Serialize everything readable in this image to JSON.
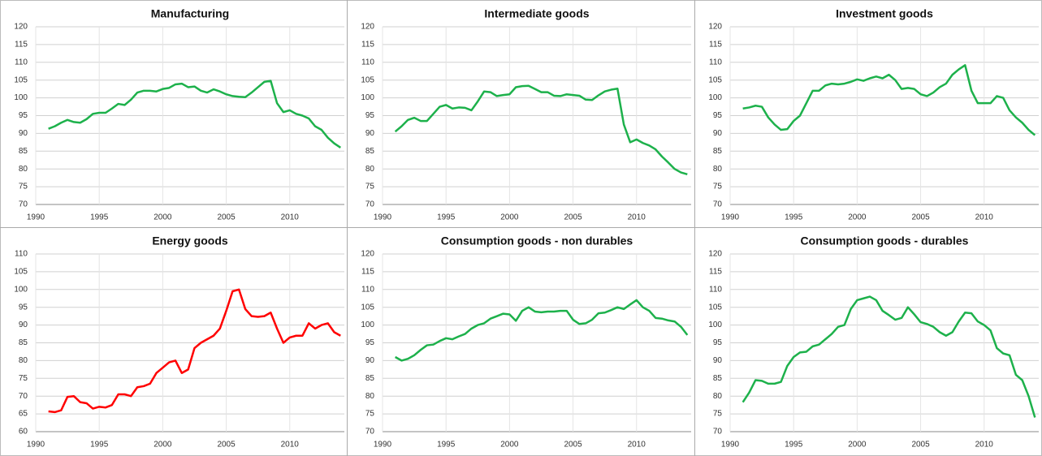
{
  "chart_data": [
    {
      "type": "line",
      "title": "Manufacturing",
      "color": "#1db14b",
      "grid": true,
      "xlim": [
        1990,
        2014.3
      ],
      "xticks": [
        1990,
        1995,
        2000,
        2005,
        2010
      ],
      "ylim": [
        70,
        120
      ],
      "yticks": [
        70,
        75,
        80,
        85,
        90,
        95,
        100,
        105,
        110,
        115,
        120
      ],
      "x": [
        1991,
        1991.5,
        1992,
        1992.5,
        1993,
        1993.5,
        1994,
        1994.5,
        1995,
        1995.5,
        1996,
        1996.5,
        1997,
        1997.5,
        1998,
        1998.5,
        1999,
        1999.5,
        2000,
        2000.5,
        2001,
        2001.5,
        2002,
        2002.5,
        2003,
        2003.5,
        2004,
        2004.5,
        2005,
        2005.5,
        2006,
        2006.5,
        2007,
        2007.5,
        2008,
        2008.5,
        2009,
        2009.5,
        2010,
        2010.5,
        2011,
        2011.5,
        2012,
        2012.5,
        2013,
        2013.5,
        2014
      ],
      "values": [
        91.3,
        92,
        93,
        93.8,
        93.2,
        93,
        94,
        95.5,
        95.8,
        95.8,
        97,
        98.3,
        98,
        99.5,
        101.5,
        102,
        102,
        101.8,
        102.5,
        102.8,
        103.8,
        104,
        103,
        103.2,
        102,
        101.5,
        102.4,
        101.8,
        101,
        100.5,
        100.3,
        100.2,
        101.5,
        103,
        104.5,
        104.8,
        98.5,
        96,
        96.5,
        95.5,
        95,
        94.2,
        92,
        91,
        88.8,
        87.2,
        86
      ]
    },
    {
      "type": "line",
      "title": "Intermediate goods",
      "color": "#1db14b",
      "grid": true,
      "xlim": [
        1990,
        2014.3
      ],
      "xticks": [
        1990,
        1995,
        2000,
        2005,
        2010
      ],
      "ylim": [
        70,
        120
      ],
      "yticks": [
        70,
        75,
        80,
        85,
        90,
        95,
        100,
        105,
        110,
        115,
        120
      ],
      "x": [
        1991,
        1991.5,
        1992,
        1992.5,
        1993,
        1993.5,
        1994,
        1994.5,
        1995,
        1995.5,
        1996,
        1996.5,
        1997,
        1997.5,
        1998,
        1998.5,
        1999,
        1999.5,
        2000,
        2000.5,
        2001,
        2001.5,
        2002,
        2002.5,
        2003,
        2003.5,
        2004,
        2004.5,
        2005,
        2005.5,
        2006,
        2006.5,
        2007,
        2007.5,
        2008,
        2008.5,
        2009,
        2009.5,
        2010,
        2010.5,
        2011,
        2011.5,
        2012,
        2012.5,
        2013,
        2013.5,
        2014
      ],
      "values": [
        90.5,
        92,
        93.8,
        94.4,
        93.5,
        93.5,
        95.5,
        97.5,
        98,
        97,
        97.3,
        97.2,
        96.5,
        99,
        101.8,
        101.6,
        100.5,
        100.8,
        101,
        103,
        103.3,
        103.4,
        102.5,
        101.6,
        101.6,
        100.6,
        100.5,
        101,
        100.8,
        100.6,
        99.5,
        99.4,
        100.7,
        101.8,
        102.3,
        102.6,
        92.5,
        87.5,
        88.3,
        87.3,
        86.6,
        85.5,
        83.5,
        81.8,
        80,
        79,
        78.5
      ]
    },
    {
      "type": "line",
      "title": "Investment goods",
      "color": "#1db14b",
      "grid": true,
      "xlim": [
        1990,
        2014.3
      ],
      "xticks": [
        1990,
        1995,
        2000,
        2005,
        2010
      ],
      "ylim": [
        70,
        120
      ],
      "yticks": [
        70,
        75,
        80,
        85,
        90,
        95,
        100,
        105,
        110,
        115,
        120
      ],
      "x": [
        1991,
        1991.5,
        1992,
        1992.5,
        1993,
        1993.5,
        1994,
        1994.5,
        1995,
        1995.5,
        1996,
        1996.5,
        1997,
        1997.5,
        1998,
        1998.5,
        1999,
        1999.5,
        2000,
        2000.5,
        2001,
        2001.5,
        2002,
        2002.5,
        2003,
        2003.5,
        2004,
        2004.5,
        2005,
        2005.5,
        2006,
        2006.5,
        2007,
        2007.5,
        2008,
        2008.5,
        2009,
        2009.5,
        2010,
        2010.5,
        2011,
        2011.5,
        2012,
        2012.5,
        2013,
        2013.5,
        2014
      ],
      "values": [
        97,
        97.3,
        97.8,
        97.5,
        94.5,
        92.5,
        91,
        91.2,
        93.5,
        95,
        98.5,
        102,
        102,
        103.5,
        104,
        103.8,
        104,
        104.5,
        105.2,
        104.8,
        105.5,
        106,
        105.5,
        106.5,
        105,
        102.5,
        102.8,
        102.5,
        101,
        100.5,
        101.5,
        103,
        104,
        106.5,
        108,
        109.2,
        102,
        98.5,
        98.5,
        98.5,
        100.5,
        100,
        96.5,
        94.5,
        93,
        91,
        89.5
      ]
    },
    {
      "type": "line",
      "title": "Energy goods",
      "color": "#ff0000",
      "grid": true,
      "xlim": [
        1990,
        2014.3
      ],
      "xticks": [
        1990,
        1995,
        2000,
        2005,
        2010
      ],
      "ylim": [
        60,
        110
      ],
      "yticks": [
        60,
        65,
        70,
        75,
        80,
        85,
        90,
        95,
        100,
        105,
        110
      ],
      "x": [
        1991,
        1991.5,
        1992,
        1992.5,
        1993,
        1993.5,
        1994,
        1994.5,
        1995,
        1995.5,
        1996,
        1996.5,
        1997,
        1997.5,
        1998,
        1998.5,
        1999,
        1999.5,
        2000,
        2000.5,
        2001,
        2001.5,
        2002,
        2002.5,
        2003,
        2003.5,
        2004,
        2004.5,
        2005,
        2005.5,
        2006,
        2006.5,
        2007,
        2007.5,
        2008,
        2008.5,
        2009,
        2009.5,
        2010,
        2010.5,
        2011,
        2011.5,
        2012,
        2012.5,
        2013,
        2013.5,
        2014
      ],
      "values": [
        65.7,
        65.5,
        66,
        69.8,
        70,
        68.3,
        68,
        66.5,
        67,
        66.8,
        67.5,
        70.5,
        70.5,
        70,
        72.5,
        72.8,
        73.5,
        76.5,
        78,
        79.5,
        80,
        76.5,
        77.5,
        83.5,
        85,
        86,
        87,
        89,
        94,
        99.5,
        100,
        94.5,
        92.5,
        92.3,
        92.5,
        93.5,
        89,
        85,
        86.5,
        87,
        87,
        90.5,
        89,
        90,
        90.5,
        88,
        87
      ]
    },
    {
      "type": "line",
      "title": "Consumption goods - non durables",
      "color": "#1db14b",
      "grid": true,
      "xlim": [
        1990,
        2014.3
      ],
      "xticks": [
        1990,
        1995,
        2000,
        2005,
        2010
      ],
      "ylim": [
        70,
        120
      ],
      "yticks": [
        70,
        75,
        80,
        85,
        90,
        95,
        100,
        105,
        110,
        115,
        120
      ],
      "x": [
        1991,
        1991.5,
        1992,
        1992.5,
        1993,
        1993.5,
        1994,
        1994.5,
        1995,
        1995.5,
        1996,
        1996.5,
        1997,
        1997.5,
        1998,
        1998.5,
        1999,
        1999.5,
        2000,
        2000.5,
        2001,
        2001.5,
        2002,
        2002.5,
        2003,
        2003.5,
        2004,
        2004.5,
        2005,
        2005.5,
        2006,
        2006.5,
        2007,
        2007.5,
        2008,
        2008.5,
        2009,
        2009.5,
        2010,
        2010.5,
        2011,
        2011.5,
        2012,
        2012.5,
        2013,
        2013.5,
        2014
      ],
      "values": [
        91,
        90,
        90.5,
        91.5,
        93,
        94.3,
        94.5,
        95.5,
        96.3,
        96,
        96.8,
        97.5,
        99,
        100,
        100.5,
        101.8,
        102.5,
        103.2,
        103,
        101.2,
        104,
        105,
        103.8,
        103.6,
        103.8,
        103.8,
        104,
        104,
        101.5,
        100.3,
        100.5,
        101.5,
        103.3,
        103.5,
        104.2,
        105,
        104.5,
        105.8,
        107,
        105,
        104,
        102,
        101.8,
        101.3,
        101,
        99.5,
        97.2
      ]
    },
    {
      "type": "line",
      "title": "Consumption goods - durables",
      "color": "#1db14b",
      "grid": true,
      "xlim": [
        1990,
        2014.3
      ],
      "xticks": [
        1990,
        1995,
        2000,
        2005,
        2010
      ],
      "ylim": [
        70,
        120
      ],
      "yticks": [
        70,
        75,
        80,
        85,
        90,
        95,
        100,
        105,
        110,
        115,
        120
      ],
      "x": [
        1991,
        1991.5,
        1992,
        1992.5,
        1993,
        1993.5,
        1994,
        1994.5,
        1995,
        1995.5,
        1996,
        1996.5,
        1997,
        1997.5,
        1998,
        1998.5,
        1999,
        1999.5,
        2000,
        2000.5,
        2001,
        2001.5,
        2002,
        2002.5,
        2003,
        2003.5,
        2004,
        2004.5,
        2005,
        2005.5,
        2006,
        2006.5,
        2007,
        2007.5,
        2008,
        2008.5,
        2009,
        2009.5,
        2010,
        2010.5,
        2011,
        2011.5,
        2012,
        2012.5,
        2013,
        2013.5,
        2014
      ],
      "values": [
        78.3,
        81,
        84.5,
        84.3,
        83.5,
        83.5,
        84,
        88.5,
        91,
        92.3,
        92.5,
        94,
        94.5,
        96,
        97.5,
        99.5,
        100,
        104.5,
        107,
        107.5,
        108,
        107,
        104,
        102.8,
        101.5,
        102,
        105,
        103,
        100.8,
        100.3,
        99.5,
        98,
        97,
        98,
        101,
        103.5,
        103.3,
        101,
        100,
        98.5,
        93.5,
        92,
        91.5,
        86,
        84.5,
        80,
        74
      ]
    }
  ]
}
